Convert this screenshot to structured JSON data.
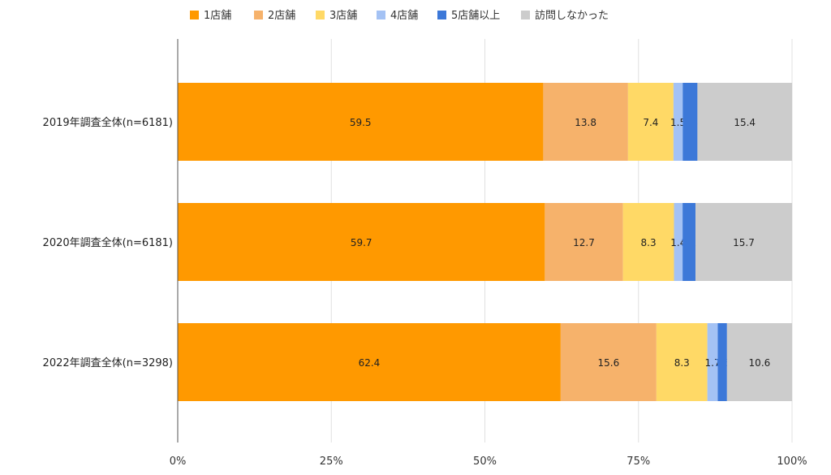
{
  "chart_data": {
    "type": "bar",
    "orientation": "horizontal",
    "stacked": "percent",
    "categories": [
      "2019年調査全体(n=6181)",
      "2020年調査全体(n=6181)",
      "2022年調査全体(n=3298)"
    ],
    "series": [
      {
        "name": "1店舗",
        "color": "#ff9900",
        "values": [
          59.5,
          59.7,
          62.4
        ]
      },
      {
        "name": "2店舗",
        "color": "#f6b26b",
        "values": [
          13.8,
          12.7,
          15.6
        ]
      },
      {
        "name": "3店舗",
        "color": "#ffd966",
        "values": [
          7.4,
          8.3,
          8.3
        ]
      },
      {
        "name": "4店舗",
        "color": "#a4c2f4",
        "values": [
          1.5,
          1.4,
          1.7
        ]
      },
      {
        "name": "5店舗以上",
        "color": "#3c78d8",
        "values": [
          2.4,
          2.1,
          1.5
        ]
      },
      {
        "name": "訪問しなかった",
        "color": "#cccccc",
        "values": [
          15.4,
          15.7,
          10.6
        ]
      }
    ],
    "xticks": [
      "0%",
      "25%",
      "50%",
      "75%",
      "100%"
    ],
    "xlim": [
      0,
      100
    ],
    "grid": true,
    "legend_position": "top"
  }
}
